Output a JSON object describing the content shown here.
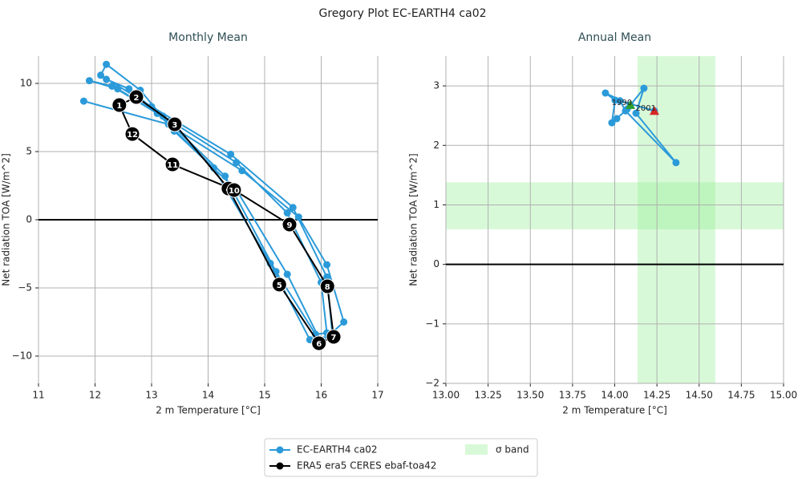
{
  "title": "Gregory Plot EC-EARTH4 ca02",
  "legend": "lower center",
  "chart_data": [
    {
      "type": "line",
      "title": "Monthly Mean",
      "xlabel": "2 m Temperature [°C]",
      "ylabel": "Net radiation TOA [W/m^2]",
      "xlim": [
        11,
        17
      ],
      "xticks": [
        11,
        12,
        13,
        14,
        15,
        16,
        17
      ],
      "ylim": [
        -12,
        12
      ],
      "yticks": [
        {
          "value": -10,
          "label": "−10"
        },
        {
          "value": -5,
          "label": "−5"
        },
        0,
        5,
        10
      ],
      "grid": true,
      "hline": 0,
      "series": [
        {
          "name": "EC-EARTH4 ca02",
          "color": "#2b9ad9",
          "x": [
            12.2,
            12.6,
            13.3,
            14.3,
            15.2,
            15.9,
            16.1,
            16.0,
            15.4,
            14.5,
            13.2,
            12.4,
            11.9,
            12.3,
            13.1,
            14.1,
            15.1,
            15.8,
            16.2,
            16.1,
            15.5,
            14.4,
            13.0,
            12.1,
            12.2,
            12.8,
            13.4,
            14.5,
            15.4,
            16.0,
            16.4,
            16.1,
            15.6,
            14.6,
            13.3,
            11.8
          ],
          "values": [
            10.3,
            9.6,
            7.2,
            3.2,
            -3.8,
            -8.4,
            -8.3,
            -4.6,
            0.5,
            4.2,
            7.6,
            9.6,
            10.2,
            9.8,
            7.8,
            3.8,
            -3.2,
            -8.8,
            -8.5,
            -4.2,
            0.9,
            4.8,
            8.3,
            10.6,
            11.4,
            9.5,
            6.5,
            2.2,
            -4.0,
            -9.0,
            -7.5,
            -3.3,
            0.2,
            3.6,
            7.0,
            8.7
          ]
        },
        {
          "name": "ERA5 era5 CERES ebaf-toa42",
          "color": "#000000",
          "closed": true,
          "x": [
            12.43,
            12.73,
            13.41,
            14.36,
            15.26,
            15.96,
            16.22,
            16.11,
            15.44,
            14.46,
            13.37,
            12.66
          ],
          "values": [
            8.41,
            9.0,
            7.0,
            2.29,
            -4.76,
            -9.06,
            -8.59,
            -4.88,
            -0.35,
            2.18,
            4.06,
            6.29
          ],
          "labels": [
            1,
            2,
            3,
            4,
            5,
            6,
            7,
            8,
            9,
            10,
            11,
            12
          ]
        }
      ]
    },
    {
      "type": "line",
      "title": "Annual Mean",
      "xlabel": "2 m Temperature [°C]",
      "ylabel": "Net radiation TOA [W/m^2]",
      "xlim": [
        13,
        15
      ],
      "xticks": [
        {
          "value": 13,
          "label": "13.00"
        },
        {
          "value": 13.25,
          "label": "13.25"
        },
        {
          "value": 13.5,
          "label": "13.50"
        },
        {
          "value": 13.75,
          "label": "13.75"
        },
        {
          "value": 14,
          "label": "14.00"
        },
        {
          "value": 14.25,
          "label": "14.25"
        },
        {
          "value": 14.5,
          "label": "14.50"
        },
        {
          "value": 14.75,
          "label": "14.75"
        },
        {
          "value": 15,
          "label": "15.00"
        }
      ],
      "ylim": [
        -2,
        3.5
      ],
      "yticks": [
        {
          "value": -2,
          "label": "−2"
        },
        {
          "value": -1,
          "label": "−1"
        },
        0,
        1,
        2,
        3
      ],
      "grid": true,
      "hline": 0,
      "sigma_band": {
        "label": "σ band",
        "color": "#90ee90",
        "x": [
          14.135,
          14.596
        ],
        "y": [
          0.59,
          1.38
        ]
      },
      "annotations": [
        1990,
        2001
      ],
      "series": [
        {
          "color": "#2b9ad9",
          "start_color": "#2ca02c",
          "end_color": "#d62728",
          "x": [
            14.093,
            13.945,
            14.002,
            13.983,
            14.012,
            14.074,
            14.173,
            14.126,
            14.363,
            14.064,
            14.031,
            14.235
          ],
          "values": [
            2.68,
            2.88,
            2.76,
            2.38,
            2.45,
            2.61,
            2.96,
            2.54,
            1.71,
            2.58,
            2.75,
            2.58
          ]
        }
      ]
    }
  ]
}
